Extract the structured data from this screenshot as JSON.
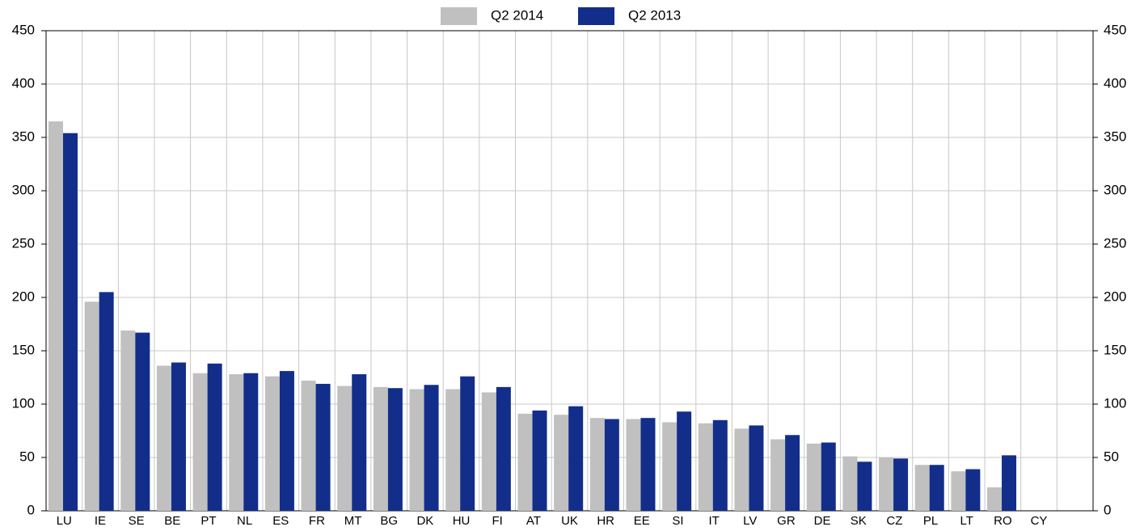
{
  "chart_data": {
    "type": "bar",
    "categories": [
      "LU",
      "IE",
      "SE",
      "BE",
      "PT",
      "NL",
      "ES",
      "FR",
      "MT",
      "BG",
      "DK",
      "HU",
      "FI",
      "AT",
      "UK",
      "HR",
      "EE",
      "SI",
      "IT",
      "LV",
      "GR",
      "DE",
      "SK",
      "CZ",
      "PL",
      "LT",
      "RO",
      "CY"
    ],
    "series": [
      {
        "name": "Q2 2014",
        "color": "#c0c0c0",
        "values": [
          365,
          196,
          169,
          136,
          129,
          128,
          126,
          122,
          117,
          116,
          114,
          114,
          111,
          91,
          90,
          87,
          86,
          83,
          82,
          77,
          67,
          63,
          51,
          50,
          43,
          37,
          22,
          null
        ]
      },
      {
        "name": "Q2 2013",
        "color": "#122e8a",
        "values": [
          354,
          205,
          167,
          139,
          138,
          129,
          131,
          119,
          128,
          115,
          118,
          126,
          116,
          94,
          98,
          86,
          87,
          93,
          85,
          80,
          71,
          64,
          46,
          49,
          43,
          39,
          52,
          null
        ]
      }
    ],
    "ylim": [
      0,
      450
    ],
    "yticks": [
      0,
      50,
      100,
      150,
      200,
      250,
      300,
      350,
      400,
      450
    ],
    "y2lim": [
      0,
      450
    ],
    "y2ticks": [
      0,
      50,
      100,
      150,
      200,
      250,
      300,
      350,
      400,
      450
    ],
    "grid": true
  }
}
